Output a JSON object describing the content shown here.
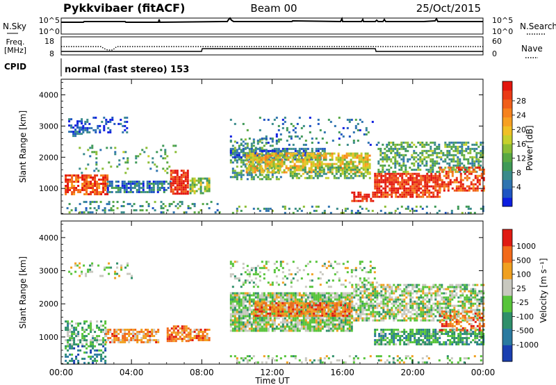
{
  "header": {
    "title": "Pykkvibaer (fitACF)",
    "beam": "Beam 00",
    "date": "25/Oct/2015"
  },
  "top_strips": {
    "nsky_label": "N.Sky",
    "nsky_ticks": [
      "10^5",
      "10^0"
    ],
    "nsearch_label": "N.Search",
    "nsearch_ticks": [
      "10^5",
      "10^0"
    ],
    "freq_label_1": "Freq.",
    "freq_label_2": "[MHz]",
    "freq_ticks": [
      "18",
      "8"
    ],
    "nave_label": "Nave",
    "nave_ticks": [
      "60",
      "0"
    ],
    "cpid_label": "CPID",
    "cpid_text": "normal (fast stereo) 153"
  },
  "chart_data": [
    {
      "type": "heatmap",
      "panel": "power",
      "ylabel": "Slant Range [km]",
      "yticks": [
        "4000",
        "3000",
        "2000",
        "1000"
      ],
      "ylim": [
        180,
        4500
      ],
      "xlim": [
        0,
        24
      ],
      "colorbar_label": "Power [dB]",
      "colorbar_ticks": [
        "28",
        "24",
        "20",
        "16",
        "12",
        "8",
        "4"
      ],
      "colorscale": [
        "#0d1ee0",
        "#1f55c2",
        "#2f74b0",
        "#3a8b8b",
        "#3f9957",
        "#58a843",
        "#8bbd35",
        "#c6d02c",
        "#f0c025",
        "#f7a022",
        "#f6821d",
        "#f05f1a",
        "#ea3a16",
        "#e3160e"
      ],
      "regions": [
        {
          "t0": 0.4,
          "t1": 1.2,
          "r0": 2700,
          "r1": 3250,
          "v": 0.12,
          "d": 0.55
        },
        {
          "t0": 1.2,
          "t1": 3.8,
          "r0": 2800,
          "r1": 3300,
          "v": 0.12,
          "d": 0.35
        },
        {
          "t0": 0.2,
          "t1": 2.6,
          "r0": 800,
          "r1": 1450,
          "v": 0.85,
          "d": 0.75
        },
        {
          "t0": 2.6,
          "t1": 6.2,
          "r0": 850,
          "r1": 1250,
          "v": 0.2,
          "d": 0.7
        },
        {
          "t0": 6.2,
          "t1": 7.2,
          "r0": 850,
          "r1": 1600,
          "v": 0.95,
          "d": 0.85
        },
        {
          "t0": 7.3,
          "t1": 8.4,
          "r0": 850,
          "r1": 1350,
          "v": 0.45,
          "d": 0.7
        },
        {
          "t0": 0.3,
          "t1": 9.0,
          "r0": 200,
          "r1": 600,
          "v": 0.28,
          "d": 0.25
        },
        {
          "t0": 1.0,
          "t1": 6.5,
          "r0": 1500,
          "r1": 2400,
          "v": 0.35,
          "d": 0.12
        },
        {
          "t0": 9.6,
          "t1": 12.5,
          "r0": 1300,
          "r1": 2600,
          "v": 0.32,
          "d": 0.45
        },
        {
          "t0": 9.6,
          "t1": 15.0,
          "r0": 1900,
          "r1": 2300,
          "v": 0.18,
          "d": 0.65
        },
        {
          "t0": 10.5,
          "t1": 17.6,
          "r0": 1500,
          "r1": 2150,
          "v": 0.58,
          "d": 0.7
        },
        {
          "t0": 13.0,
          "t1": 17.6,
          "r0": 1350,
          "r1": 1700,
          "v": 0.4,
          "d": 0.55
        },
        {
          "t0": 9.6,
          "t1": 18.0,
          "r0": 2400,
          "r1": 3300,
          "v": 0.2,
          "d": 0.12
        },
        {
          "t0": 17.8,
          "t1": 21.5,
          "r0": 700,
          "r1": 1500,
          "v": 0.92,
          "d": 0.8
        },
        {
          "t0": 16.5,
          "t1": 17.8,
          "r0": 600,
          "r1": 900,
          "v": 0.95,
          "d": 0.6
        },
        {
          "t0": 18.0,
          "t1": 24.0,
          "r0": 1500,
          "r1": 2500,
          "v": 0.35,
          "d": 0.55
        },
        {
          "t0": 21.5,
          "t1": 24.0,
          "r0": 900,
          "r1": 1700,
          "v": 0.85,
          "d": 0.55
        },
        {
          "t0": 9.6,
          "t1": 24.0,
          "r0": 200,
          "r1": 450,
          "v": 0.3,
          "d": 0.2
        }
      ]
    },
    {
      "type": "heatmap",
      "panel": "velocity",
      "ylabel": "Slant Range [km]",
      "yticks": [
        "4000",
        "3000",
        "2000",
        "1000"
      ],
      "ylim": [
        180,
        4500
      ],
      "xlim": [
        0,
        24
      ],
      "colorbar_label": "Velocity [m s⁻¹]",
      "colorbar_ticks": [
        "1000",
        "500",
        "100",
        "25",
        "-25",
        "-100",
        "-500",
        "-1000"
      ],
      "colorscale": [
        "#1a3fb0",
        "#2a7aa0",
        "#2f8f6a",
        "#57c43a",
        "#c8c8bf",
        "#f0a020",
        "#f26a1a",
        "#e01a12"
      ],
      "regions": [
        {
          "t0": 0.2,
          "t1": 2.5,
          "r0": 750,
          "r1": 1500,
          "v": 0.4,
          "d": 0.55
        },
        {
          "t0": 0.2,
          "t1": 2.5,
          "r0": 200,
          "r1": 750,
          "v": 0.25,
          "d": 0.4
        },
        {
          "t0": 2.5,
          "t1": 5.5,
          "r0": 850,
          "r1": 1250,
          "v": 0.72,
          "d": 0.65
        },
        {
          "t0": 6.0,
          "t1": 7.3,
          "r0": 850,
          "r1": 1350,
          "v": 0.78,
          "d": 0.75
        },
        {
          "t0": 7.3,
          "t1": 8.4,
          "r0": 900,
          "r1": 1250,
          "v": 0.75,
          "d": 0.7
        },
        {
          "t0": 0.4,
          "t1": 4.0,
          "r0": 2750,
          "r1": 3250,
          "v": 0.5,
          "d": 0.2
        },
        {
          "t0": 9.6,
          "t1": 16.5,
          "r0": 1200,
          "r1": 2350,
          "v": 0.5,
          "d": 0.85
        },
        {
          "t0": 11.0,
          "t1": 16.5,
          "r0": 1650,
          "r1": 2050,
          "v": 0.76,
          "d": 0.8
        },
        {
          "t0": 16.5,
          "t1": 24.0,
          "r0": 1500,
          "r1": 2600,
          "v": 0.5,
          "d": 0.65
        },
        {
          "t0": 17.8,
          "t1": 24.0,
          "r0": 750,
          "r1": 1250,
          "v": 0.36,
          "d": 0.75
        },
        {
          "t0": 21.5,
          "t1": 24.0,
          "r0": 1200,
          "r1": 1800,
          "v": 0.77,
          "d": 0.5
        },
        {
          "t0": 9.6,
          "t1": 18.0,
          "r0": 2500,
          "r1": 3300,
          "v": 0.5,
          "d": 0.2
        },
        {
          "t0": 9.6,
          "t1": 24.0,
          "r0": 200,
          "r1": 450,
          "v": 0.48,
          "d": 0.22
        }
      ]
    }
  ],
  "time_axis": {
    "ticks": [
      "00:00",
      "04:00",
      "08:00",
      "12:00",
      "16:00",
      "20:00",
      "00:00"
    ],
    "label": "Time UT"
  },
  "colors": {
    "background": "#ffffff",
    "axis": "#000000"
  }
}
